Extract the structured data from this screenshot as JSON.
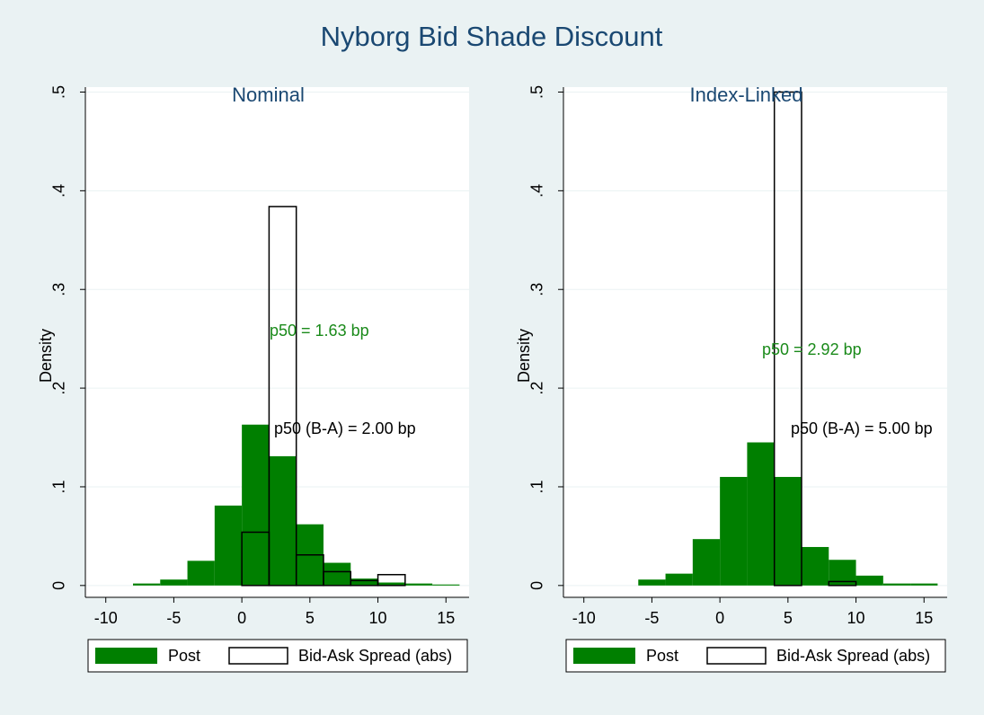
{
  "title": "Nyborg Bid Shade Discount",
  "chart_data": [
    {
      "type": "histogram",
      "title": "Nominal",
      "ylabel": "Density",
      "xlim": [
        -11.5,
        16.7
      ],
      "ylim": [
        -0.012,
        0.505
      ],
      "xticks": [
        -10,
        -5,
        0,
        5,
        10,
        15
      ],
      "yticks": [
        0,
        {
          "value": 0.1,
          "label": ".1"
        },
        {
          "value": 0.2,
          "label": ".2"
        },
        {
          "value": 0.3,
          "label": ".3"
        },
        {
          "value": 0.4,
          "label": ".4"
        },
        {
          "value": 0.5,
          "label": ".5"
        }
      ],
      "grid": true,
      "series": [
        {
          "name": "Post",
          "color": "#007f00",
          "bins": [
            -8,
            -6,
            -4,
            -2,
            0,
            2,
            4,
            6,
            8,
            10,
            12,
            14,
            16
          ],
          "values": [
            0.002,
            0.006,
            0.025,
            0.081,
            0.163,
            0.131,
            0.062,
            0.023,
            0.007,
            0.003,
            0.002,
            0.001
          ]
        },
        {
          "name": "Bid-Ask Spread (abs)",
          "color": "#ffffff",
          "bins": [
            0,
            2,
            4,
            6,
            8,
            10,
            12
          ],
          "values": [
            0.054,
            0.384,
            0.031,
            0.014,
            0.005,
            0.011
          ]
        }
      ],
      "annotations": [
        {
          "text": "p50 = 1.63 bp",
          "color": "#1a8a1a"
        },
        {
          "text": "p50 (B-A) = 2.00 bp",
          "color": "#000000"
        }
      ]
    },
    {
      "type": "histogram",
      "title": "Index-Linked",
      "ylabel": "Density",
      "xlim": [
        -11.5,
        16.7
      ],
      "ylim": [
        -0.012,
        0.505
      ],
      "xticks": [
        -10,
        -5,
        0,
        5,
        10,
        15
      ],
      "yticks": [
        0,
        {
          "value": 0.1,
          "label": ".1"
        },
        {
          "value": 0.2,
          "label": ".2"
        },
        {
          "value": 0.3,
          "label": ".3"
        },
        {
          "value": 0.4,
          "label": ".4"
        },
        {
          "value": 0.5,
          "label": ".5"
        }
      ],
      "grid": true,
      "series": [
        {
          "name": "Post",
          "color": "#007f00",
          "bins": [
            -6,
            -4,
            -2,
            0,
            2,
            4,
            6,
            8,
            10,
            12,
            14,
            16
          ],
          "values": [
            0.006,
            0.012,
            0.047,
            0.11,
            0.145,
            0.11,
            0.039,
            0.026,
            0.01,
            0.002,
            0.002
          ]
        },
        {
          "name": "Bid-Ask Spread (abs)",
          "color": "#ffffff",
          "bins": [
            4,
            6,
            8,
            10
          ],
          "values": [
            0.5,
            0,
            0.004
          ]
        }
      ],
      "annotations": [
        {
          "text": "p50 = 2.92 bp",
          "color": "#1a8a1a"
        },
        {
          "text": "p50 (B-A) = 5.00 bp",
          "color": "#000000"
        }
      ]
    }
  ]
}
